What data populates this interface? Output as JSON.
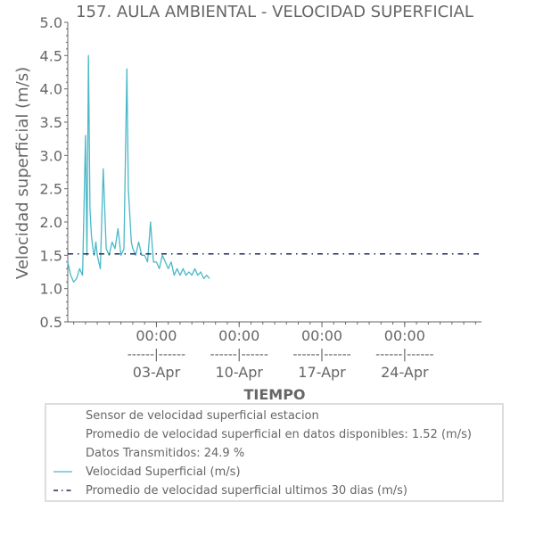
{
  "chart_data": {
    "type": "line",
    "title": "157. AULA AMBIENTAL - VELOCIDAD SUPERFICIAL",
    "ylabel": "Velocidad superficial (m/s)",
    "xlabel": "TIEMPO",
    "ylim": [
      0.5,
      5.0
    ],
    "yticks": [
      "0.5",
      "1.0",
      "1.5",
      "2.0",
      "2.5",
      "3.0",
      "3.5",
      "4.0",
      "4.5",
      "5.0"
    ],
    "xlim": [
      "2024-03-26T12:00",
      "2024-04-30T12:00"
    ],
    "xticks": [
      {
        "date": "2024-04-03T00:00",
        "time": "00:00",
        "sep": "------|------",
        "day": "03-Apr"
      },
      {
        "date": "2024-04-10T00:00",
        "time": "00:00",
        "sep": "------|------",
        "day": "10-Apr"
      },
      {
        "date": "2024-04-17T00:00",
        "time": "00:00",
        "sep": "------|------",
        "day": "17-Apr"
      },
      {
        "date": "2024-04-24T00:00",
        "time": "00:00",
        "sep": "------|------",
        "day": "24-Apr"
      }
    ],
    "grid": false,
    "legend_placement": "bottom",
    "series": [
      {
        "name": "Velocidad Superficial (m/s)",
        "color": "#4bb8c8",
        "style": "solid",
        "x": [
          "2024-03-26T12:00",
          "2024-03-26T18:00",
          "2024-03-27T00:00",
          "2024-03-27T06:00",
          "2024-03-27T12:00",
          "2024-03-27T18:00",
          "2024-03-28T00:00",
          "2024-03-28T03:00",
          "2024-03-28T06:00",
          "2024-03-28T09:00",
          "2024-03-28T12:00",
          "2024-03-28T15:00",
          "2024-03-28T18:00",
          "2024-03-28T21:00",
          "2024-03-29T00:00",
          "2024-03-29T06:00",
          "2024-03-29T12:00",
          "2024-03-29T18:00",
          "2024-03-30T00:00",
          "2024-03-30T06:00",
          "2024-03-30T12:00",
          "2024-03-30T18:00",
          "2024-03-31T00:00",
          "2024-03-31T06:00",
          "2024-03-31T12:00",
          "2024-03-31T15:00",
          "2024-03-31T18:00",
          "2024-03-31T21:00",
          "2024-04-01T00:00",
          "2024-04-01T06:00",
          "2024-04-01T12:00",
          "2024-04-01T18:00",
          "2024-04-02T00:00",
          "2024-04-02T06:00",
          "2024-04-02T12:00",
          "2024-04-02T18:00",
          "2024-04-03T00:00",
          "2024-04-03T06:00",
          "2024-04-03T12:00",
          "2024-04-03T18:00",
          "2024-04-04T00:00",
          "2024-04-04T06:00",
          "2024-04-04T12:00",
          "2024-04-04T18:00",
          "2024-04-05T00:00",
          "2024-04-05T06:00",
          "2024-04-05T12:00",
          "2024-04-05T18:00",
          "2024-04-06T00:00",
          "2024-04-06T06:00",
          "2024-04-06T12:00",
          "2024-04-06T18:00",
          "2024-04-07T00:00",
          "2024-04-07T06:00",
          "2024-04-07T12:00"
        ],
        "y": [
          1.4,
          1.2,
          1.1,
          1.15,
          1.3,
          1.2,
          3.3,
          1.5,
          4.5,
          2.2,
          1.8,
          1.6,
          1.5,
          1.7,
          1.5,
          1.3,
          2.8,
          1.6,
          1.5,
          1.7,
          1.6,
          1.9,
          1.5,
          1.6,
          4.3,
          2.5,
          2.1,
          1.7,
          1.6,
          1.5,
          1.7,
          1.5,
          1.5,
          1.4,
          2.0,
          1.4,
          1.4,
          1.3,
          1.5,
          1.4,
          1.3,
          1.4,
          1.2,
          1.3,
          1.2,
          1.3,
          1.2,
          1.25,
          1.2,
          1.3,
          1.2,
          1.25,
          1.15,
          1.2,
          1.15
        ]
      },
      {
        "name": "Promedio de velocidad superficial ultimos 30 dias (m/s)",
        "color": "#1a2a5a",
        "style": "dashdot",
        "x": [
          "2024-03-26T12:00",
          "2024-04-30T12:00"
        ],
        "y": [
          1.52,
          1.52
        ]
      }
    ],
    "legend": {
      "lines": [
        {
          "text": "Sensor de velocidad superficial estacion",
          "marker": "none"
        },
        {
          "text": "Promedio de velocidad superficial en datos disponibles: 1.52 (m/s)",
          "marker": "none"
        },
        {
          "text": "Datos Transmitidos: 24.9 %",
          "marker": "none"
        },
        {
          "text": "Velocidad Superficial (m/s)",
          "marker": "solid"
        },
        {
          "text": "Promedio de velocidad superficial ultimos 30 dias (m/s)",
          "marker": "dashdot"
        }
      ]
    }
  }
}
